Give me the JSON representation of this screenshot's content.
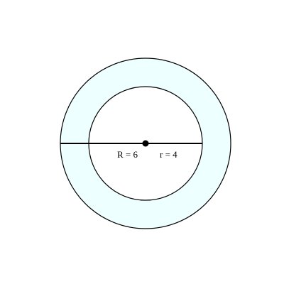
{
  "labels": {
    "outer_radius": "R = 6",
    "inner_radius": "r = 4"
  },
  "geometry_data": {
    "outer_radius": 6,
    "inner_radius": 4
  },
  "colors": {
    "ring_fill": "#eeffff",
    "inner_fill": "#ffffff",
    "stroke": "#000000",
    "background": "#ffffff"
  }
}
